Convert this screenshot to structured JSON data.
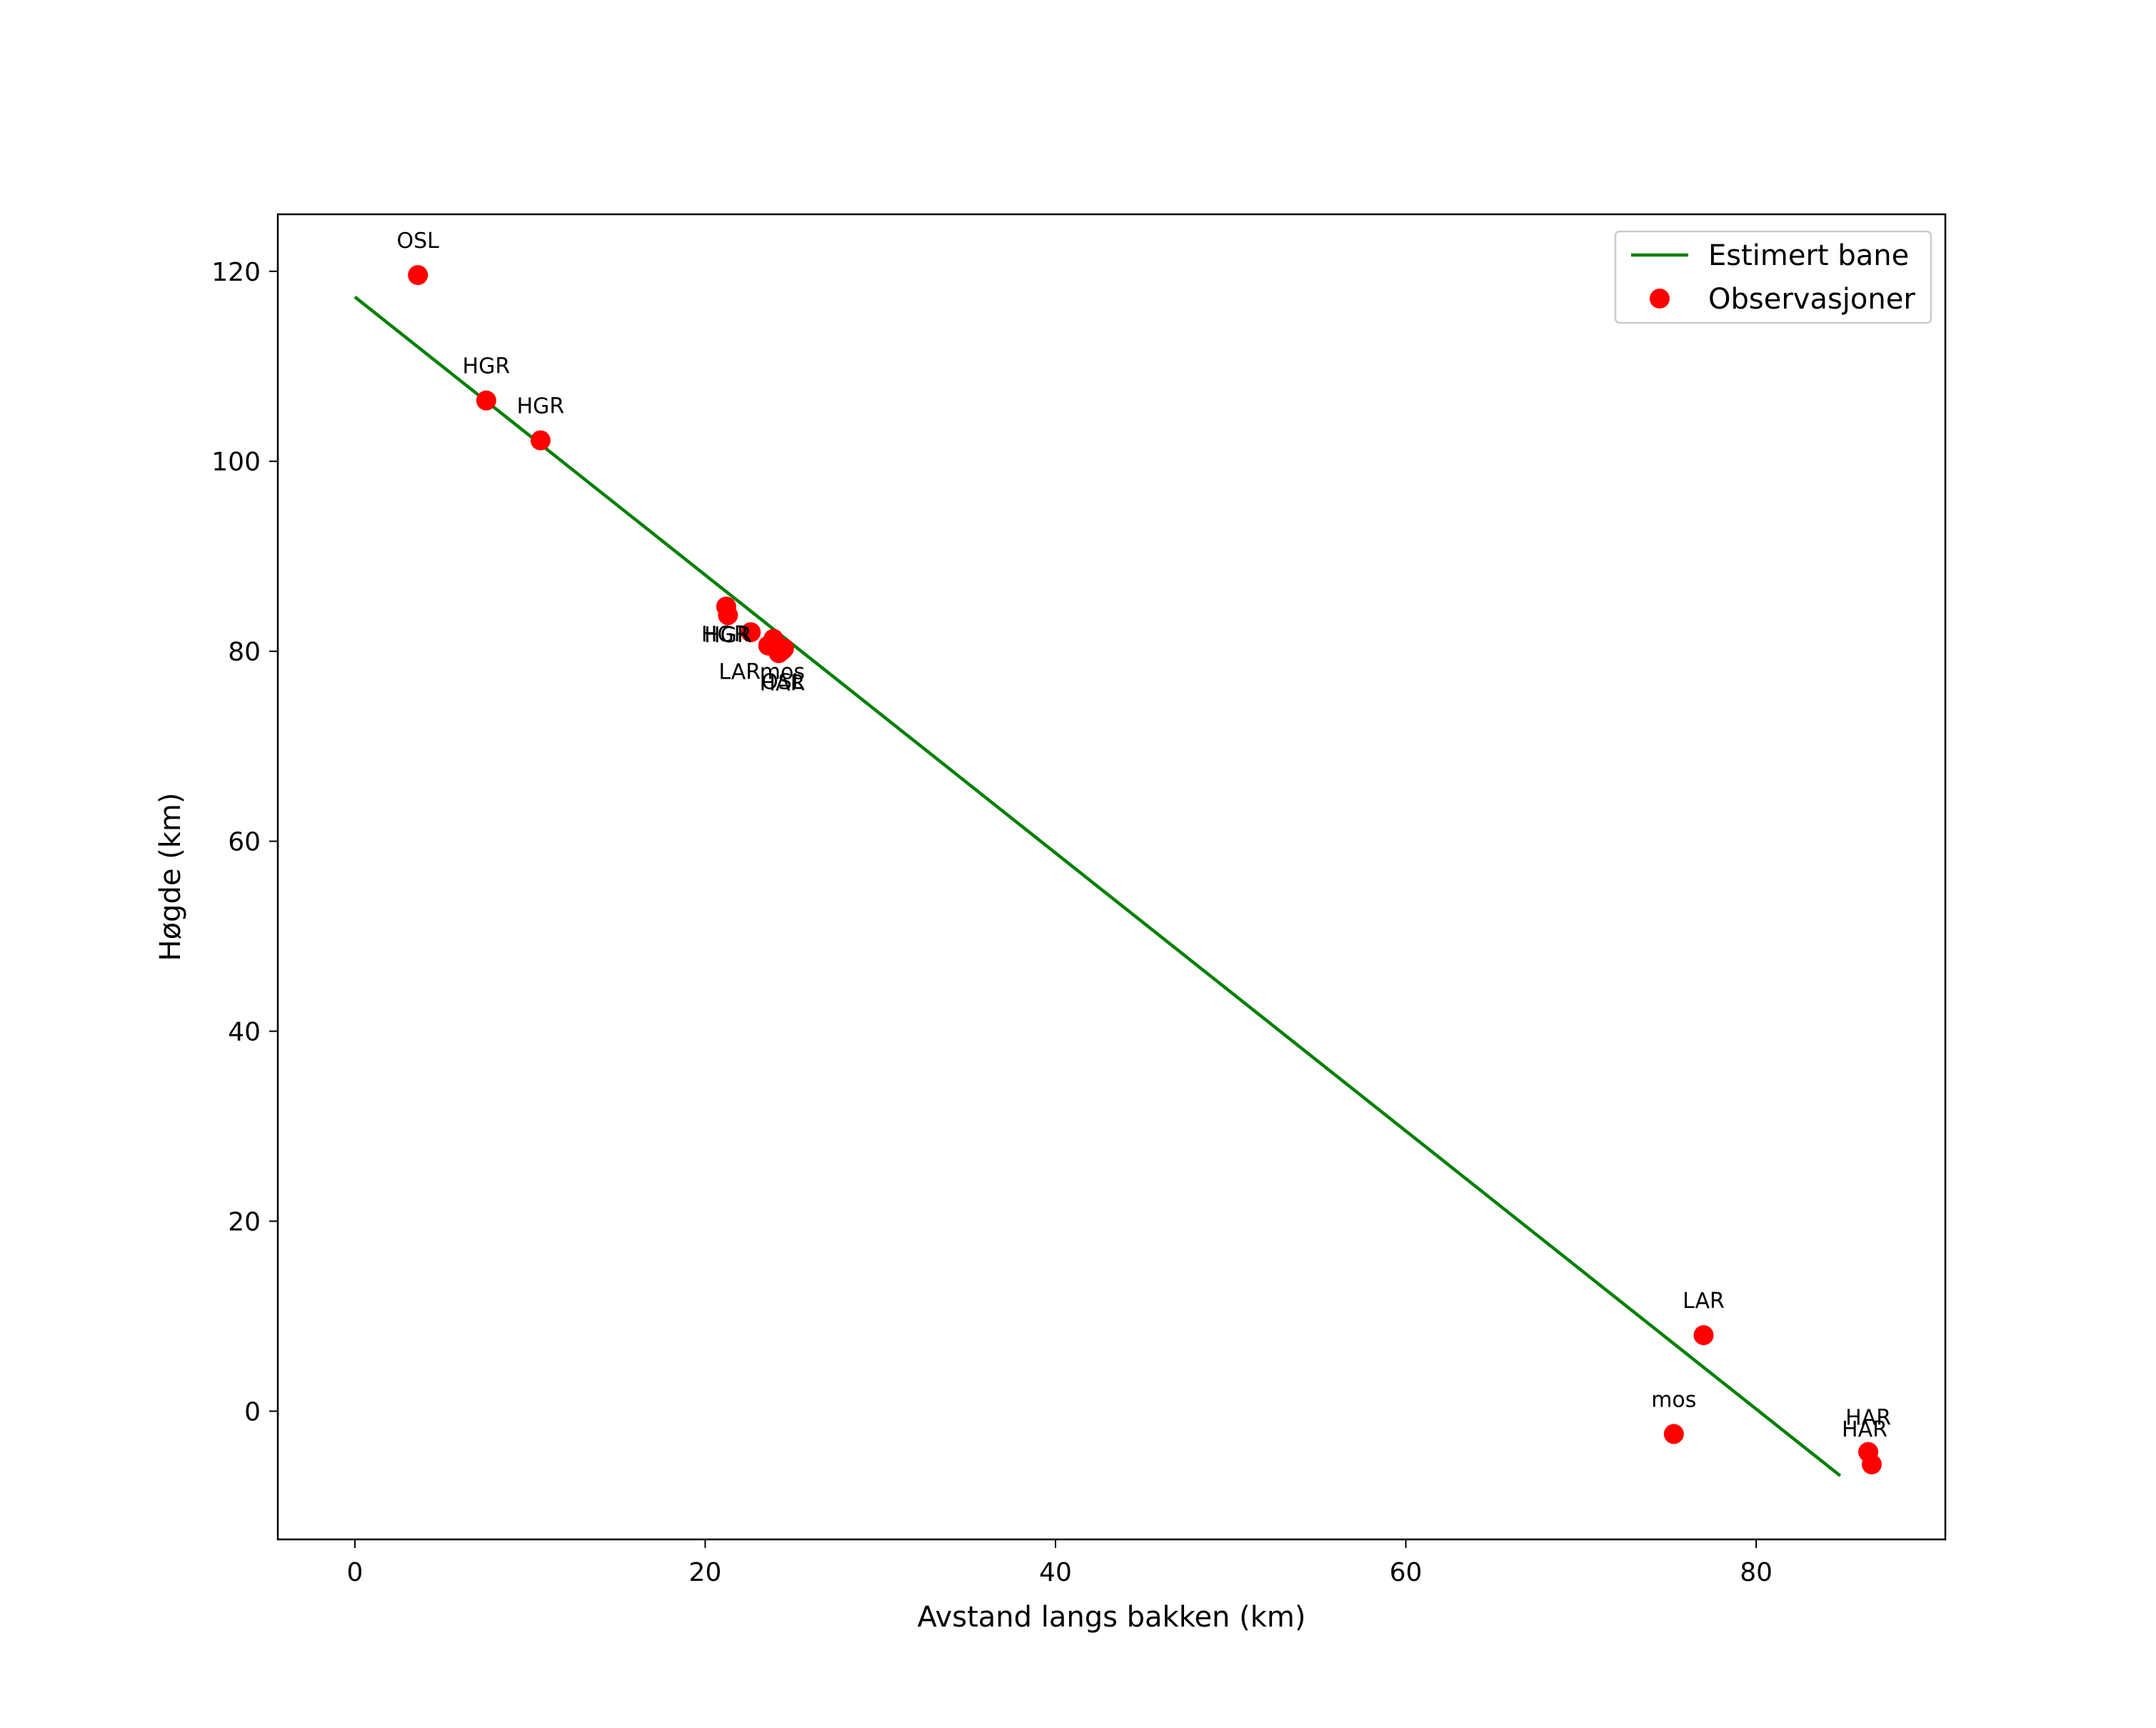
{
  "chart_data": {
    "type": "scatter",
    "title": "",
    "xlabel": "Avstand langs bakken (km)",
    "ylabel": "Høgde (km)",
    "xlim": [
      -4.4,
      90.8
    ],
    "ylim": [
      -13.5,
      126
    ],
    "xticks": [
      0,
      20,
      40,
      60,
      80
    ],
    "yticks": [
      0,
      20,
      40,
      60,
      80,
      100,
      120
    ],
    "grid": false,
    "legend_position": "top-right",
    "colors": {
      "line": "#008000",
      "points": "#ff0000"
    },
    "series": [
      {
        "name": "Estimert bane",
        "kind": "line",
        "x": [
          0,
          84.8
        ],
        "y": [
          117.3,
          -6.8
        ]
      },
      {
        "name": "Observasjoner",
        "kind": "scatter",
        "points": [
          {
            "x": 3.6,
            "y": 119.6,
            "label": "OSL"
          },
          {
            "x": 7.5,
            "y": 106.4,
            "label": "HGR"
          },
          {
            "x": 10.6,
            "y": 102.2,
            "label": "HGR"
          },
          {
            "x": 21.2,
            "y": 84.7,
            "label": ""
          },
          {
            "x": 21.3,
            "y": 83.8,
            "label": "HGR"
          },
          {
            "x": 22.6,
            "y": 82.0,
            "label": "HGR"
          },
          {
            "x": 23.6,
            "y": 80.6,
            "label": "LAR"
          },
          {
            "x": 23.9,
            "y": 81.3,
            "label": ""
          },
          {
            "x": 24.2,
            "y": 79.8,
            "label": "HAR"
          },
          {
            "x": 24.4,
            "y": 80.1,
            "label": "mos"
          },
          {
            "x": 24.5,
            "y": 80.3,
            "label": "OSL"
          },
          {
            "x": 75.3,
            "y": -2.4,
            "label": "mos"
          },
          {
            "x": 77.0,
            "y": 8.0,
            "label": "LAR"
          },
          {
            "x": 86.4,
            "y": -4.3,
            "label": "HAR"
          },
          {
            "x": 86.6,
            "y": -5.6,
            "label": "HAR"
          }
        ]
      }
    ]
  }
}
